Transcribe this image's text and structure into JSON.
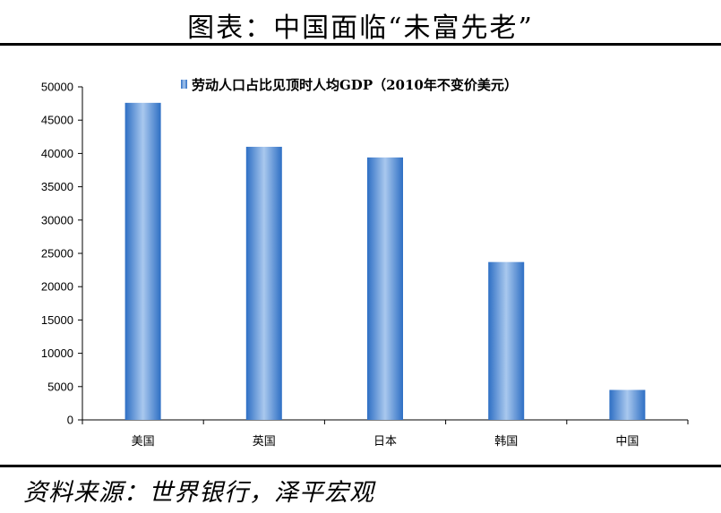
{
  "page_title": "图表：中国面临“未富先老”",
  "source_note": "资料来源：世界银行，泽平宏观",
  "colors": {
    "bar_dark": "#2e6fc4",
    "bar_light": "#a9c8ee",
    "axis": "#000000"
  },
  "chart_data": {
    "type": "bar",
    "categories": [
      "美国",
      "英国",
      "日本",
      "韩国",
      "中国"
    ],
    "series": [
      {
        "name": "劳动人口占比见顶时人均GDP（2010年不变价美元）",
        "values": [
          47600,
          41000,
          39400,
          23700,
          4500
        ]
      }
    ],
    "ylim": [
      0,
      50000
    ],
    "yticks": [
      0,
      5000,
      10000,
      15000,
      20000,
      25000,
      30000,
      35000,
      40000,
      45000,
      50000
    ],
    "legend_position": "top-right",
    "grid": false
  }
}
